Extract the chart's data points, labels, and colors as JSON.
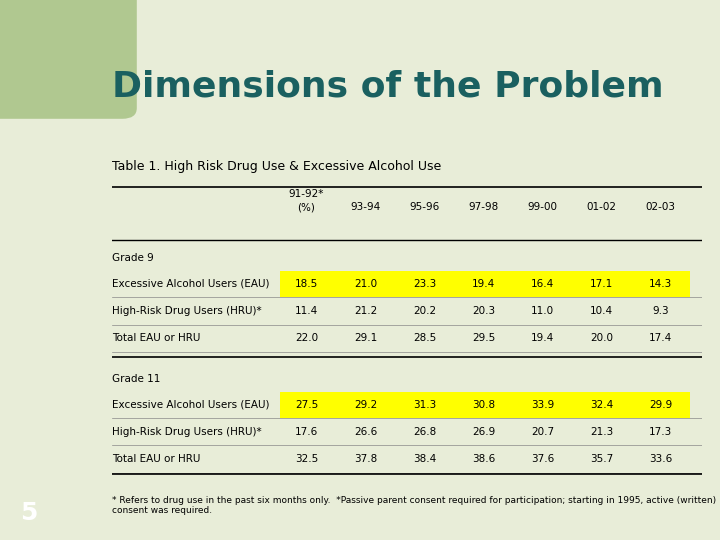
{
  "title": "Dimensions of the Problem",
  "subtitle": "Table 1. High Risk Drug Use & Excessive Alcohol Use",
  "bg_color": "#ffffff",
  "slide_bg": "#e8edd8",
  "accent_bg": "#1a3a5c",
  "green_rect_color": "#b0c890",
  "title_color": "#1a6060",
  "title_fontsize": 26,
  "subtitle_fontsize": 9,
  "columns": [
    "",
    "91-92*\n(%)",
    "93-94",
    "95-96",
    "97-98",
    "99-00",
    "01-02",
    "02-03"
  ],
  "sections": [
    {
      "label": "Grade 9",
      "rows": [
        {
          "name": "Excessive Alcohol Users (EAU)",
          "values": [
            "18.5",
            "21.0",
            "23.3",
            "19.4",
            "16.4",
            "17.1",
            "14.3"
          ],
          "highlight": true
        },
        {
          "name": "High-Risk Drug Users (HRU)*",
          "values": [
            "11.4",
            "21.2",
            "20.2",
            "20.3",
            "11.0",
            "10.4",
            "9.3"
          ],
          "highlight": false
        },
        {
          "name": "Total EAU or HRU",
          "values": [
            "22.0",
            "29.1",
            "28.5",
            "29.5",
            "19.4",
            "20.0",
            "17.4"
          ],
          "highlight": false
        }
      ]
    },
    {
      "label": "Grade 11",
      "rows": [
        {
          "name": "Excessive Alcohol Users (EAU)",
          "values": [
            "27.5",
            "29.2",
            "31.3",
            "30.8",
            "33.9",
            "32.4",
            "29.9"
          ],
          "highlight": true
        },
        {
          "name": "High-Risk Drug Users (HRU)*",
          "values": [
            "17.6",
            "26.6",
            "26.8",
            "26.9",
            "20.7",
            "21.3",
            "17.3"
          ],
          "highlight": false
        },
        {
          "name": "Total EAU or HRU",
          "values": [
            "32.5",
            "37.8",
            "38.4",
            "38.6",
            "37.6",
            "35.7",
            "33.6"
          ],
          "highlight": false
        }
      ]
    }
  ],
  "footnote_line1": "* Refers to drug use in the past six months only.  *Passive parent consent required for participation; starting in 1995, active (written)",
  "footnote_line2": "consent was required.",
  "page_number": "5",
  "highlight_color": "#ffff00",
  "row_line_color": "#888888",
  "section_line_color": "#000000",
  "table_font_size": 7.5,
  "footnote_font_size": 6.5
}
